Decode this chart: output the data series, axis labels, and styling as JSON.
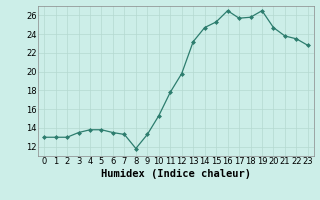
{
  "x": [
    0,
    1,
    2,
    3,
    4,
    5,
    6,
    7,
    8,
    9,
    10,
    11,
    12,
    13,
    14,
    15,
    16,
    17,
    18,
    19,
    20,
    21,
    22,
    23
  ],
  "y": [
    13.0,
    13.0,
    13.0,
    13.5,
    13.8,
    13.8,
    13.5,
    13.3,
    11.8,
    13.3,
    15.3,
    17.8,
    19.8,
    23.2,
    24.7,
    25.3,
    26.5,
    25.7,
    25.8,
    26.5,
    24.7,
    23.8,
    23.5,
    22.8
  ],
  "line_color": "#2d7d6e",
  "marker": "D",
  "marker_size": 2.0,
  "bg_color": "#cceee8",
  "grid_color": "#b5d9d0",
  "xlabel": "Humidex (Indice chaleur)",
  "xlim": [
    -0.5,
    23.5
  ],
  "ylim": [
    11,
    27
  ],
  "yticks": [
    12,
    14,
    16,
    18,
    20,
    22,
    24,
    26
  ],
  "xticks": [
    0,
    1,
    2,
    3,
    4,
    5,
    6,
    7,
    8,
    9,
    10,
    11,
    12,
    13,
    14,
    15,
    16,
    17,
    18,
    19,
    20,
    21,
    22,
    23
  ],
  "tick_fontsize": 6,
  "xlabel_fontsize": 7.5
}
